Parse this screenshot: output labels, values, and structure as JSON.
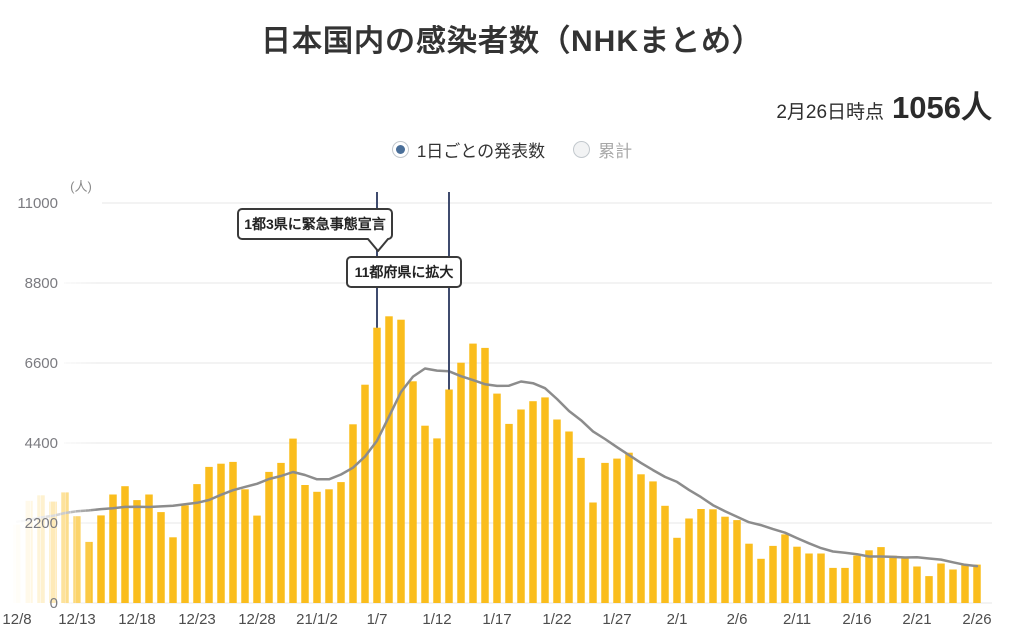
{
  "header": {
    "title": "日本国内の感染者数（NHKまとめ）"
  },
  "status": {
    "as_of": "2月26日時点",
    "count": "1056人"
  },
  "controls": {
    "options": [
      {
        "label": "1日ごとの発表数",
        "selected": true
      },
      {
        "label": "累計",
        "selected": false
      }
    ]
  },
  "chart_data": {
    "type": "bar",
    "title": "日本国内の感染者数（NHKまとめ）",
    "unit_label": "(人)",
    "ylim": [
      0,
      11000
    ],
    "yticks": [
      0,
      2200,
      4400,
      6600,
      8800,
      11000
    ],
    "grid": true,
    "legend_position": "none",
    "x": [
      "12/8",
      "12/9",
      "12/10",
      "12/11",
      "12/12",
      "12/13",
      "12/14",
      "12/15",
      "12/16",
      "12/17",
      "12/18",
      "12/19",
      "12/20",
      "12/21",
      "12/22",
      "12/23",
      "12/24",
      "12/25",
      "12/26",
      "12/27",
      "12/28",
      "12/29",
      "12/30",
      "12/31",
      "1/1",
      "1/2",
      "1/3",
      "1/4",
      "1/5",
      "1/6",
      "1/7",
      "1/8",
      "1/9",
      "1/10",
      "1/11",
      "1/12",
      "1/13",
      "1/14",
      "1/15",
      "1/16",
      "1/17",
      "1/18",
      "1/19",
      "1/20",
      "1/21",
      "1/22",
      "1/23",
      "1/24",
      "1/25",
      "1/26",
      "1/27",
      "1/28",
      "1/29",
      "1/30",
      "1/31",
      "2/1",
      "2/2",
      "2/3",
      "2/4",
      "2/5",
      "2/6",
      "2/7",
      "2/8",
      "2/9",
      "2/10",
      "2/11",
      "2/12",
      "2/13",
      "2/14",
      "2/15",
      "2/16",
      "2/17",
      "2/18",
      "2/19",
      "2/20",
      "2/21",
      "2/22",
      "2/23",
      "2/24",
      "2/25",
      "2/26"
    ],
    "xticks": [
      {
        "i": 0,
        "label": "12/8"
      },
      {
        "i": 5,
        "label": "12/13"
      },
      {
        "i": 10,
        "label": "12/18"
      },
      {
        "i": 15,
        "label": "12/23"
      },
      {
        "i": 20,
        "label": "12/28"
      },
      {
        "i": 25,
        "label": "21/1/2"
      },
      {
        "i": 30,
        "label": "1/7"
      },
      {
        "i": 35,
        "label": "1/12"
      },
      {
        "i": 40,
        "label": "1/17"
      },
      {
        "i": 45,
        "label": "1/22"
      },
      {
        "i": 50,
        "label": "1/27"
      },
      {
        "i": 55,
        "label": "2/1"
      },
      {
        "i": 60,
        "label": "2/6"
      },
      {
        "i": 65,
        "label": "2/11"
      },
      {
        "i": 70,
        "label": "2/16"
      },
      {
        "i": 75,
        "label": "2/21"
      },
      {
        "i": 80,
        "label": "2/26"
      }
    ],
    "series": [
      {
        "name": "daily-announced-cases",
        "type": "bar",
        "color": "#FABD1D",
        "values": [
          2152,
          2811,
          2962,
          2788,
          3041,
          2387,
          1680,
          2410,
          2984,
          3211,
          2829,
          2985,
          2501,
          1806,
          2688,
          3271,
          3742,
          3832,
          3881,
          3127,
          2403,
          3604,
          3852,
          4520,
          3246,
          3059,
          3127,
          3325,
          4915,
          6004,
          7570,
          7883,
          7790,
          6097,
          4876,
          4527,
          5870,
          6609,
          7133,
          7014,
          5759,
          4925,
          5320,
          5549,
          5653,
          5045,
          4717,
          3990,
          2764,
          3853,
          3971,
          4133,
          3539,
          3344,
          2673,
          1792,
          2324,
          2585,
          2576,
          2372,
          2281,
          1631,
          1216,
          1570,
          1887,
          1547,
          1362,
          1361,
          965,
          966,
          1304,
          1448,
          1538,
          1301,
          1234,
          1005,
          739,
          1086,
          921,
          1073,
          1056
        ]
      },
      {
        "name": "seven-day-average-line",
        "type": "line",
        "color": "#8C8C8C",
        "values": [
          2232,
          2286,
          2350,
          2399,
          2475,
          2522,
          2546,
          2583,
          2607,
          2643,
          2649,
          2641,
          2657,
          2675,
          2715,
          2756,
          2832,
          2975,
          3103,
          3192,
          3278,
          3409,
          3492,
          3603,
          3519,
          3402,
          3402,
          3533,
          3721,
          4028,
          4464,
          5126,
          5802,
          6226,
          6448,
          6392,
          6373,
          6236,
          6129,
          6018,
          5970,
          5977,
          6090,
          6044,
          5908,
          5609,
          5281,
          5028,
          4720,
          4510,
          4285,
          4068,
          3852,
          3656,
          3468,
          3329,
          3111,
          2913,
          2690,
          2524,
          2372,
          2223,
          2141,
          2033,
          1933,
          1786,
          1642,
          1511,
          1415,
          1380,
          1342,
          1279,
          1278,
          1269,
          1251,
          1257,
          1224,
          1193,
          1118,
          1051,
          1016
        ]
      }
    ],
    "annotations": [
      {
        "i": 30,
        "date": "1/7",
        "text": "1都3県に緊急事態宣言",
        "box": {
          "x": 238,
          "y": 209,
          "w": 154,
          "h": 30
        },
        "tail_x": 378
      },
      {
        "i": 36,
        "date": "1/13",
        "text": "11都府県に拡大",
        "box": {
          "x": 347,
          "y": 257,
          "w": 114,
          "h": 30
        }
      }
    ],
    "colors": {
      "bar": "#FABD1D",
      "avg_line": "#8C8C8C",
      "grid": "#e7e7e7",
      "annotation_line": "#3F4B6E",
      "annotation_border": "#3a3a3a",
      "radio_selected_dot": "#4a6f99"
    },
    "faded_dates": [
      "12/8",
      "12/9",
      "12/10",
      "12/11",
      "12/12"
    ]
  }
}
